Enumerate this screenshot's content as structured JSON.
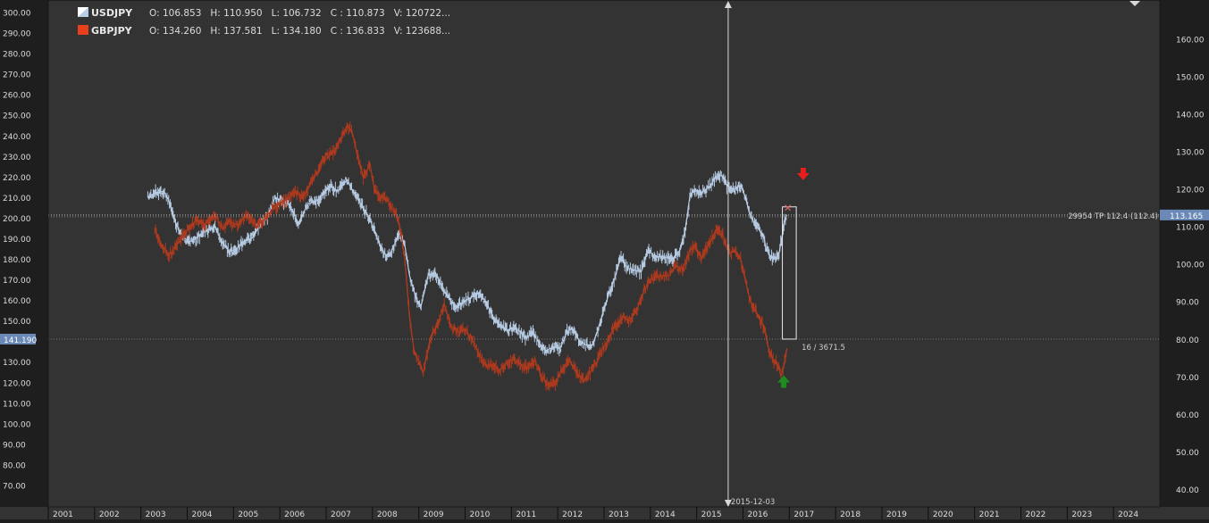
{
  "colors": {
    "background": "#333333",
    "frame": "#1e1e1e",
    "grid_line": "#3c3c3c",
    "axis_text": "#dcdcdc",
    "usdjpy": "#b8cde6",
    "gbpjpy": "#b03a1e",
    "gbpjpy_legend": "#e8401c",
    "crosshair": "#d8d8d8",
    "price_tag_bg": "#6a89b6",
    "arrow_sell": "#e61e1e",
    "arrow_buy": "#1e8c1e"
  },
  "legend": [
    {
      "symbol": "USDJPY",
      "icon": "blue-white-swatch-icon",
      "ohlcv": "O: 106.853   H: 110.950   L: 106.732   C : 110.873   V: 120722..."
    },
    {
      "symbol": "GBPJPY",
      "icon": "red-swatch-icon",
      "ohlcv": "O: 134.260   H: 137.581   L: 134.180   C : 136.833   V: 123688..."
    }
  ],
  "chart_data": {
    "type": "line",
    "x_axis": {
      "tick_labels": [
        "2001",
        "2002",
        "2003",
        "2004",
        "2005",
        "2006",
        "2007",
        "2008",
        "2009",
        "2010",
        "2011",
        "2012",
        "2013",
        "2014",
        "2015",
        "2016",
        "2017",
        "2018",
        "2019",
        "2020",
        "2021",
        "2022",
        "2023",
        "2024"
      ],
      "range": [
        "2001",
        "2025"
      ]
    },
    "y_left": {
      "series": "GBPJPY",
      "range": [
        60,
        310
      ],
      "tick_labels": [
        "70.00",
        "80.00",
        "90.00",
        "100.00",
        "110.00",
        "120.00",
        "130.00",
        "140.00",
        "150.00",
        "160.00",
        "170.00",
        "180.00",
        "190.00",
        "200.00",
        "210.00",
        "220.00",
        "230.00",
        "240.00",
        "250.00",
        "260.00",
        "270.00",
        "280.00",
        "290.00",
        "300.00"
      ]
    },
    "y_right": {
      "series": "USDJPY",
      "range": [
        32,
        170
      ],
      "tick_labels": [
        "40.00",
        "50.00",
        "60.00",
        "70.00",
        "80.00",
        "90.00",
        "100.00",
        "110.00",
        "120.00",
        "130.00",
        "140.00",
        "150.00",
        "160.00"
      ]
    },
    "series": [
      {
        "name": "USDJPY",
        "axis": "right",
        "points": [
          [
            2003.15,
            118
          ],
          [
            2003.3,
            119
          ],
          [
            2003.5,
            119.5
          ],
          [
            2003.6,
            117
          ],
          [
            2003.75,
            111
          ],
          [
            2003.9,
            107.5
          ],
          [
            2004.05,
            106
          ],
          [
            2004.2,
            107
          ],
          [
            2004.4,
            109
          ],
          [
            2004.6,
            110
          ],
          [
            2004.75,
            106
          ],
          [
            2004.9,
            103.5
          ],
          [
            2005.05,
            104
          ],
          [
            2005.2,
            106
          ],
          [
            2005.4,
            107
          ],
          [
            2005.6,
            111
          ],
          [
            2005.75,
            113
          ],
          [
            2005.9,
            118
          ],
          [
            2006.0,
            117
          ],
          [
            2006.2,
            116
          ],
          [
            2006.4,
            111
          ],
          [
            2006.6,
            116
          ],
          [
            2006.8,
            117
          ],
          [
            2006.95,
            119
          ],
          [
            2007.1,
            121
          ],
          [
            2007.25,
            119.5
          ],
          [
            2007.45,
            122.5
          ],
          [
            2007.6,
            119
          ],
          [
            2007.75,
            116
          ],
          [
            2007.95,
            112
          ],
          [
            2008.1,
            107
          ],
          [
            2008.25,
            103
          ],
          [
            2008.35,
            102
          ],
          [
            2008.5,
            106
          ],
          [
            2008.6,
            108.5
          ],
          [
            2008.7,
            105
          ],
          [
            2008.8,
            97
          ],
          [
            2008.95,
            90.5
          ],
          [
            2009.05,
            89
          ],
          [
            2009.2,
            97
          ],
          [
            2009.35,
            98
          ],
          [
            2009.5,
            94
          ],
          [
            2009.65,
            91
          ],
          [
            2009.8,
            88.5
          ],
          [
            2009.95,
            90
          ],
          [
            2010.1,
            91
          ],
          [
            2010.3,
            92.5
          ],
          [
            2010.45,
            90
          ],
          [
            2010.6,
            86
          ],
          [
            2010.75,
            83.5
          ],
          [
            2010.9,
            82.5
          ],
          [
            2011.05,
            83
          ],
          [
            2011.2,
            82
          ],
          [
            2011.3,
            80
          ],
          [
            2011.45,
            82
          ],
          [
            2011.6,
            79
          ],
          [
            2011.75,
            77
          ],
          [
            2011.9,
            78
          ],
          [
            2012.05,
            77.5
          ],
          [
            2012.2,
            82
          ],
          [
            2012.3,
            83
          ],
          [
            2012.45,
            80
          ],
          [
            2012.6,
            78.5
          ],
          [
            2012.75,
            78.5
          ],
          [
            2012.85,
            82
          ],
          [
            2012.95,
            86
          ],
          [
            2013.1,
            92
          ],
          [
            2013.25,
            97
          ],
          [
            2013.35,
            102
          ],
          [
            2013.5,
            99
          ],
          [
            2013.65,
            98.5
          ],
          [
            2013.8,
            98
          ],
          [
            2013.95,
            104
          ],
          [
            2014.1,
            102
          ],
          [
            2014.3,
            102
          ],
          [
            2014.5,
            101.5
          ],
          [
            2014.65,
            104
          ],
          [
            2014.75,
            109
          ],
          [
            2014.85,
            118
          ],
          [
            2014.95,
            120
          ],
          [
            2015.1,
            119
          ],
          [
            2015.3,
            121
          ],
          [
            2015.45,
            124
          ],
          [
            2015.55,
            123.5
          ],
          [
            2015.65,
            121
          ],
          [
            2015.8,
            120
          ],
          [
            2015.95,
            121
          ],
          [
            2016.05,
            118
          ],
          [
            2016.15,
            113
          ],
          [
            2016.3,
            110
          ],
          [
            2016.45,
            107.5
          ],
          [
            2016.5,
            104
          ],
          [
            2016.6,
            102
          ],
          [
            2016.7,
            101.5
          ],
          [
            2016.78,
            103
          ],
          [
            2016.85,
            108
          ],
          [
            2016.9,
            112
          ],
          [
            2016.95,
            113.2
          ]
        ]
      },
      {
        "name": "GBPJPY",
        "axis": "left",
        "points": [
          [
            2003.3,
            195
          ],
          [
            2003.45,
            187
          ],
          [
            2003.6,
            182
          ],
          [
            2003.75,
            186
          ],
          [
            2003.9,
            191
          ],
          [
            2004.05,
            196
          ],
          [
            2004.2,
            199
          ],
          [
            2004.4,
            197
          ],
          [
            2004.6,
            202
          ],
          [
            2004.75,
            195
          ],
          [
            2004.9,
            198
          ],
          [
            2005.1,
            197
          ],
          [
            2005.3,
            202
          ],
          [
            2005.5,
            196
          ],
          [
            2005.7,
            200
          ],
          [
            2005.85,
            205
          ],
          [
            2006.0,
            207
          ],
          [
            2006.2,
            210
          ],
          [
            2006.35,
            213
          ],
          [
            2006.5,
            210
          ],
          [
            2006.7,
            218
          ],
          [
            2006.85,
            224
          ],
          [
            2007.0,
            231
          ],
          [
            2007.15,
            232
          ],
          [
            2007.3,
            238
          ],
          [
            2007.45,
            245
          ],
          [
            2007.55,
            243
          ],
          [
            2007.7,
            228
          ],
          [
            2007.8,
            220
          ],
          [
            2007.95,
            226
          ],
          [
            2008.05,
            213
          ],
          [
            2008.2,
            210
          ],
          [
            2008.35,
            208
          ],
          [
            2008.5,
            202
          ],
          [
            2008.6,
            195
          ],
          [
            2008.7,
            180
          ],
          [
            2008.8,
            152
          ],
          [
            2008.9,
            135
          ],
          [
            2009.0,
            130
          ],
          [
            2009.1,
            125
          ],
          [
            2009.25,
            142
          ],
          [
            2009.4,
            148
          ],
          [
            2009.55,
            158
          ],
          [
            2009.7,
            147
          ],
          [
            2009.85,
            145
          ],
          [
            2010.0,
            146
          ],
          [
            2010.15,
            141
          ],
          [
            2010.3,
            134
          ],
          [
            2010.45,
            128
          ],
          [
            2010.6,
            129
          ],
          [
            2010.75,
            126
          ],
          [
            2010.9,
            130
          ],
          [
            2011.05,
            131
          ],
          [
            2011.2,
            129
          ],
          [
            2011.35,
            127
          ],
          [
            2011.5,
            131
          ],
          [
            2011.65,
            123
          ],
          [
            2011.8,
            119
          ],
          [
            2011.95,
            120
          ],
          [
            2012.1,
            127
          ],
          [
            2012.25,
            131
          ],
          [
            2012.4,
            125
          ],
          [
            2012.55,
            121
          ],
          [
            2012.7,
            125
          ],
          [
            2012.85,
            130
          ],
          [
            2012.95,
            136
          ],
          [
            2013.1,
            141
          ],
          [
            2013.25,
            148
          ],
          [
            2013.4,
            152
          ],
          [
            2013.55,
            150
          ],
          [
            2013.7,
            155
          ],
          [
            2013.85,
            164
          ],
          [
            2014.0,
            170
          ],
          [
            2014.2,
            172
          ],
          [
            2014.4,
            172
          ],
          [
            2014.55,
            177
          ],
          [
            2014.7,
            175
          ],
          [
            2014.85,
            184
          ],
          [
            2014.95,
            187
          ],
          [
            2015.1,
            181
          ],
          [
            2015.3,
            189
          ],
          [
            2015.45,
            195
          ],
          [
            2015.55,
            193
          ],
          [
            2015.7,
            183
          ],
          [
            2015.85,
            184
          ],
          [
            2015.95,
            180
          ],
          [
            2016.05,
            170
          ],
          [
            2016.15,
            160
          ],
          [
            2016.3,
            154
          ],
          [
            2016.45,
            147
          ],
          [
            2016.55,
            137
          ],
          [
            2016.65,
            131
          ],
          [
            2016.75,
            129
          ],
          [
            2016.82,
            123
          ],
          [
            2016.88,
            128
          ],
          [
            2016.95,
            136.8
          ]
        ]
      }
    ],
    "hlines": [
      {
        "axis": "right",
        "value": 113.165,
        "tag": "113.165",
        "label": "29954   TP 112.4 (112.4)"
      },
      {
        "axis": "left",
        "value": 141.19,
        "tag": "141.190"
      }
    ],
    "vline": {
      "x": 2015.68,
      "label": "2015-12-03"
    },
    "measure_box": {
      "x": [
        2016.85,
        2017.15
      ],
      "left_from": 141.19,
      "left_to": 205.5,
      "label": "16 / 3671.5"
    },
    "signals": [
      {
        "kind": "sell",
        "x": 2017.3,
        "axis": "left",
        "value": 221,
        "icon": "red-down-arrow-icon"
      },
      {
        "kind": "buy",
        "x": 2016.88,
        "axis": "left",
        "value": 121,
        "icon": "green-up-arrow-icon"
      }
    ],
    "grid": false,
    "legend_position": "top-left"
  }
}
